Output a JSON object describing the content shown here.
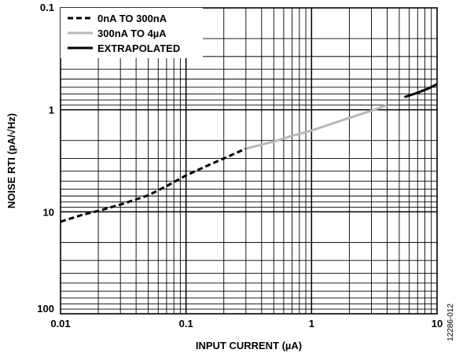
{
  "figure_id": "12286-012",
  "chart_data": {
    "type": "line",
    "title": "",
    "xlabel": "INPUT CURRENT (µA)",
    "ylabel": "NOISE RTI (pA/√Hz)",
    "x_scale": "log",
    "y_scale": "log",
    "y_inverted": true,
    "xlim": [
      0.01,
      10
    ],
    "ylim": [
      0.1,
      100
    ],
    "x_ticks": [
      "0.01",
      "0.1",
      "1",
      "10"
    ],
    "y_ticks": [
      "0.1",
      "1",
      "10",
      "100"
    ],
    "grid": true,
    "legend_position": "top-left",
    "series": [
      {
        "name": "0nA TO 300nA",
        "style": "dashed",
        "color": "#000000",
        "x": [
          0.01,
          0.015,
          0.02,
          0.03,
          0.05,
          0.07,
          0.1,
          0.15,
          0.2,
          0.3
        ],
        "y": [
          12.5,
          10.7,
          9.8,
          8.5,
          6.9,
          5.6,
          4.4,
          3.5,
          3.0,
          2.4
        ]
      },
      {
        "name": "300nA TO 4µA",
        "style": "solid",
        "color": "#b8b8b8",
        "x": [
          0.3,
          0.5,
          0.7,
          1,
          1.5,
          2,
          3,
          4
        ],
        "y": [
          2.4,
          2.05,
          1.8,
          1.6,
          1.35,
          1.2,
          1.02,
          0.9
        ]
      },
      {
        "name": "EXTRAPOLATED",
        "style": "solid",
        "color": "#000000",
        "x": [
          5.5,
          7,
          8.5,
          10
        ],
        "y": [
          0.75,
          0.68,
          0.62,
          0.56
        ]
      }
    ]
  }
}
